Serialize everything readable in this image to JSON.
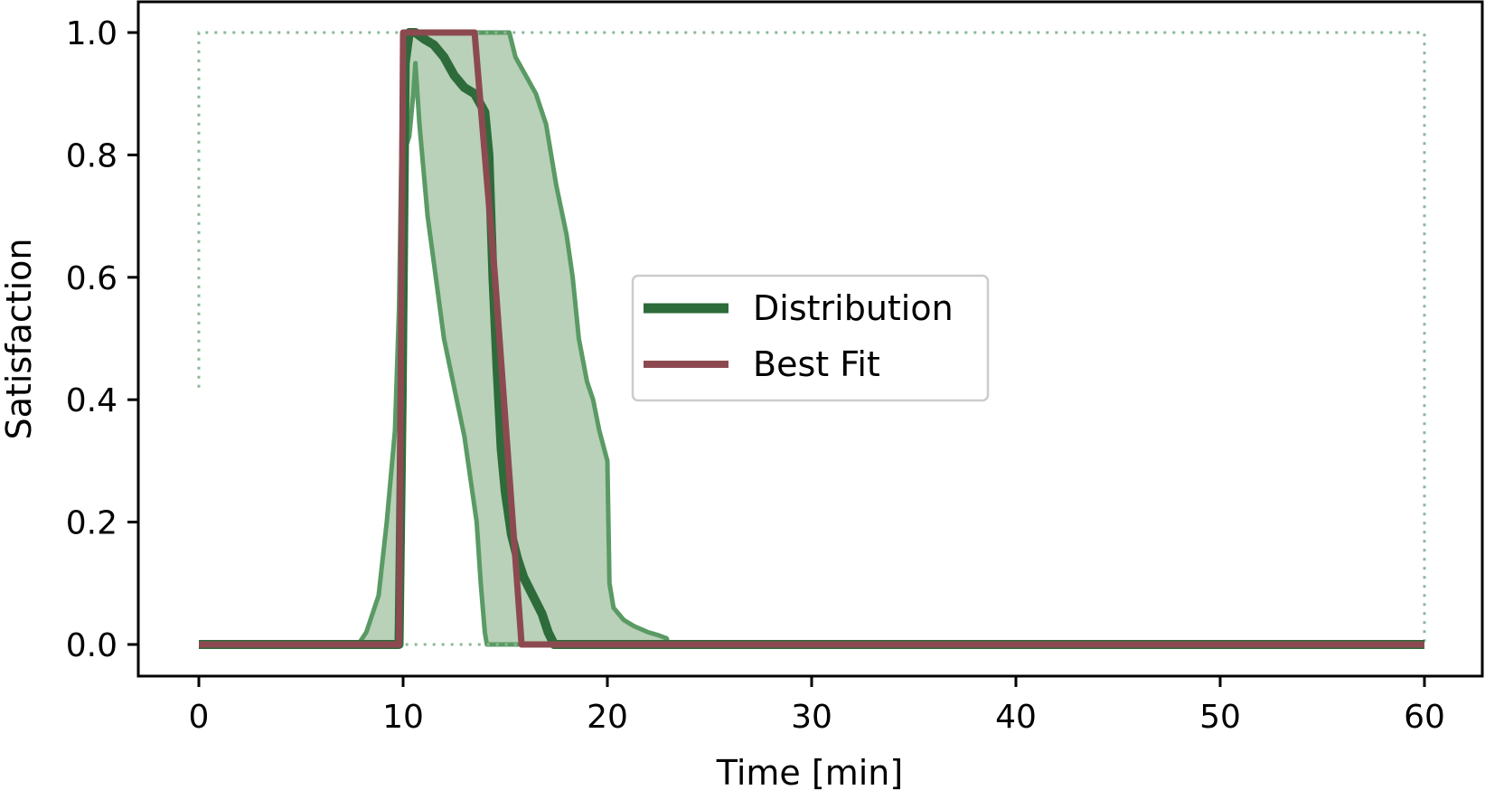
{
  "chart_data": {
    "type": "line",
    "xlabel": "Time [min]",
    "ylabel": "Satisfaction",
    "xlim": [
      -3,
      63
    ],
    "ylim": [
      -0.05,
      1.05
    ],
    "xticks": [
      0,
      10,
      20,
      30,
      40,
      50,
      60
    ],
    "yticks": [
      0.0,
      0.2,
      0.4,
      0.6,
      0.8,
      1.0
    ],
    "xtick_labels": [
      "0",
      "10",
      "20",
      "30",
      "40",
      "50",
      "60"
    ],
    "ytick_labels": [
      "0.0",
      "0.2",
      "0.4",
      "0.6",
      "0.8",
      "1.0"
    ],
    "grid": false,
    "legend_position": "center",
    "colors": {
      "distribution": "#2e6b3a",
      "band_fill": "#b9d1b8",
      "band_edge": "#5a9a64",
      "best_fit": "#8c4a50",
      "bounds": "#8ab896"
    },
    "series": [
      {
        "name": "Distribution",
        "x": [
          0,
          9.8,
          9.95,
          10.1,
          10.3,
          10.6,
          11,
          11.5,
          12,
          12.5,
          13,
          13.5,
          14,
          14.2,
          14.4,
          14.6,
          14.8,
          15,
          15.3,
          15.6,
          15.9,
          16.2,
          16.5,
          16.8,
          17.1,
          17.4,
          60
        ],
        "y": [
          0,
          0,
          0.4,
          0.95,
          1.0,
          1.0,
          0.99,
          0.98,
          0.96,
          0.93,
          0.91,
          0.9,
          0.87,
          0.8,
          0.6,
          0.45,
          0.32,
          0.25,
          0.18,
          0.14,
          0.11,
          0.09,
          0.07,
          0.05,
          0.02,
          0,
          0
        ]
      },
      {
        "name": "Best Fit",
        "x": [
          0,
          9.8,
          10.0,
          13.5,
          14.5,
          15.8,
          60
        ],
        "y": [
          0,
          0,
          1.0,
          1.0,
          0.6,
          0,
          0
        ]
      }
    ],
    "band": {
      "upper_x": [
        0,
        7.8,
        8.2,
        8.8,
        9.2,
        9.6,
        9.8,
        10.0,
        10.2,
        10.8,
        11.5,
        12.5,
        13.5,
        14.5,
        15.2,
        15.5,
        16,
        16.5,
        17,
        17.5,
        18,
        18.3,
        18.6,
        19,
        19.3,
        19.6,
        20,
        20.1,
        20.3,
        20.8,
        21.3,
        22,
        22.5,
        22.9,
        23
      ],
      "upper_y": [
        0,
        0,
        0.02,
        0.08,
        0.2,
        0.35,
        0.55,
        0.98,
        1.0,
        1.0,
        1.0,
        1.0,
        1.0,
        1.0,
        1.0,
        0.96,
        0.93,
        0.9,
        0.85,
        0.75,
        0.67,
        0.6,
        0.5,
        0.43,
        0.4,
        0.35,
        0.3,
        0.1,
        0.06,
        0.04,
        0.03,
        0.02,
        0.015,
        0.01,
        0
      ],
      "lower_x": [
        0,
        9.7,
        9.8,
        10.0,
        10.3,
        10.5,
        10.6,
        10.8,
        11.2,
        11.6,
        12,
        12.5,
        13,
        13.3,
        13.6,
        13.8,
        14.0,
        14.1,
        60
      ],
      "lower_y": [
        0,
        0,
        0.2,
        0.8,
        0.83,
        0.9,
        0.95,
        0.85,
        0.7,
        0.6,
        0.5,
        0.42,
        0.34,
        0.27,
        0.2,
        0.1,
        0.02,
        0,
        0
      ]
    },
    "bounds": {
      "x": [
        0,
        0,
        60,
        60,
        0
      ],
      "y": [
        0.42,
        1.0,
        1.0,
        0,
        0
      ]
    }
  }
}
